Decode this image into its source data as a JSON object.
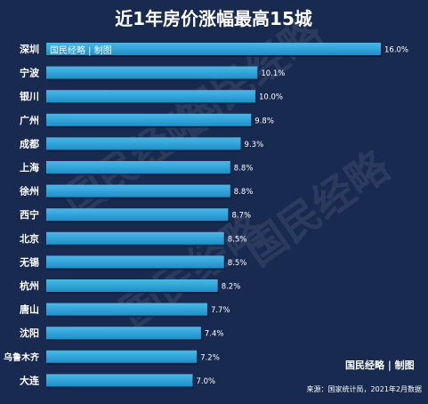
{
  "chart_data": {
    "type": "bar",
    "orientation": "horizontal",
    "title": "近1年房价涨幅最高15城",
    "categories": [
      "深圳",
      "宁波",
      "银川",
      "广州",
      "成都",
      "上海",
      "徐州",
      "西宁",
      "北京",
      "无锡",
      "杭州",
      "唐山",
      "沈阳",
      "乌鲁木齐",
      "大连"
    ],
    "values": [
      16.0,
      10.1,
      10.0,
      9.8,
      9.3,
      8.8,
      8.8,
      8.7,
      8.5,
      8.5,
      8.2,
      7.7,
      7.4,
      7.2,
      7.0
    ],
    "value_labels": [
      "16.0%",
      "10.1%",
      "10.0%",
      "9.8%",
      "9.3%",
      "8.8%",
      "8.8%",
      "8.7%",
      "8.5%",
      "8.5%",
      "8.2%",
      "7.7%",
      "7.4%",
      "7.2%",
      "7.0%"
    ],
    "xlim": [
      0,
      16
    ],
    "grid": false,
    "bar_color": "#2aa3d9",
    "background": "#182a50"
  },
  "brand_top": "国民经略 | 制图",
  "brand_bottom": "国民经略 | 制图",
  "watermark": "国民经略",
  "source": "来源：国家统计局，2021年2月数据"
}
